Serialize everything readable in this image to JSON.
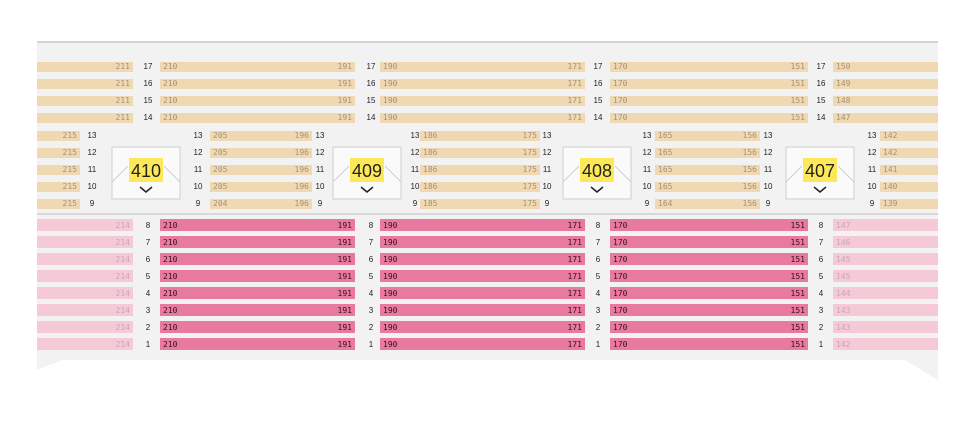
{
  "colors": {
    "upper_tier": "#efd8b2",
    "upper_tier_text": "#a89274",
    "lower_tier_selected": "#e8799f",
    "lower_tier_selected_text": "#3a1020",
    "lower_tier_unavailable": "#f6c9d6",
    "unavailable_text": "#c9a7b2",
    "floor": "#f2f2f2",
    "section_badge": "#fde85a",
    "row_number_text": "#222222"
  },
  "sections": [
    {
      "label": "410",
      "icon": "chevron-down-icon"
    },
    {
      "label": "409",
      "icon": "chevron-down-icon"
    },
    {
      "label": "408",
      "icon": "chevron-down-icon"
    },
    {
      "label": "407",
      "icon": "chevron-down-icon"
    }
  ],
  "upper_wide_rows": [
    {
      "row": "17",
      "blocks": [
        [
          "211",
          ""
        ],
        [
          "210",
          "191"
        ],
        [
          "190",
          "171"
        ],
        [
          "170",
          "151"
        ],
        [
          "150",
          ""
        ]
      ]
    },
    {
      "row": "16",
      "blocks": [
        [
          "211",
          ""
        ],
        [
          "210",
          "191"
        ],
        [
          "190",
          "171"
        ],
        [
          "170",
          "151"
        ],
        [
          "149",
          ""
        ]
      ]
    },
    {
      "row": "15",
      "blocks": [
        [
          "211",
          ""
        ],
        [
          "210",
          "191"
        ],
        [
          "190",
          "171"
        ],
        [
          "170",
          "151"
        ],
        [
          "148",
          ""
        ]
      ]
    },
    {
      "row": "14",
      "blocks": [
        [
          "211",
          ""
        ],
        [
          "210",
          "191"
        ],
        [
          "190",
          "171"
        ],
        [
          "170",
          "151"
        ],
        [
          "147",
          ""
        ]
      ]
    }
  ],
  "upper_narrow_rows": [
    {
      "row": "13",
      "blocks": [
        [
          "215",
          ""
        ],
        [
          "205",
          "196"
        ],
        [
          "186",
          "175"
        ],
        [
          "165",
          "156"
        ],
        [
          "142",
          ""
        ]
      ]
    },
    {
      "row": "12",
      "blocks": [
        [
          "215",
          ""
        ],
        [
          "205",
          "196"
        ],
        [
          "186",
          "175"
        ],
        [
          "165",
          "156"
        ],
        [
          "142",
          ""
        ]
      ]
    },
    {
      "row": "11",
      "blocks": [
        [
          "215",
          ""
        ],
        [
          "205",
          "196"
        ],
        [
          "186",
          "175"
        ],
        [
          "165",
          "156"
        ],
        [
          "141",
          ""
        ]
      ]
    },
    {
      "row": "10",
      "blocks": [
        [
          "215",
          ""
        ],
        [
          "205",
          "196"
        ],
        [
          "186",
          "175"
        ],
        [
          "165",
          "156"
        ],
        [
          "140",
          ""
        ]
      ]
    },
    {
      "row": "9",
      "blocks": [
        [
          "215",
          ""
        ],
        [
          "204",
          "196"
        ],
        [
          "185",
          "175"
        ],
        [
          "164",
          "156"
        ],
        [
          "139",
          ""
        ]
      ]
    }
  ],
  "lower_rows": [
    {
      "row": "8",
      "blocks": [
        [
          "214",
          ""
        ],
        [
          "210",
          "191"
        ],
        [
          "190",
          "171"
        ],
        [
          "170",
          "151"
        ],
        [
          "147",
          ""
        ]
      ]
    },
    {
      "row": "7",
      "blocks": [
        [
          "214",
          ""
        ],
        [
          "210",
          "191"
        ],
        [
          "190",
          "171"
        ],
        [
          "170",
          "151"
        ],
        [
          "146",
          ""
        ]
      ]
    },
    {
      "row": "6",
      "blocks": [
        [
          "214",
          ""
        ],
        [
          "210",
          "191"
        ],
        [
          "190",
          "171"
        ],
        [
          "170",
          "151"
        ],
        [
          "145",
          ""
        ]
      ]
    },
    {
      "row": "5",
      "blocks": [
        [
          "214",
          ""
        ],
        [
          "210",
          "191"
        ],
        [
          "190",
          "171"
        ],
        [
          "170",
          "151"
        ],
        [
          "145",
          ""
        ]
      ]
    },
    {
      "row": "4",
      "blocks": [
        [
          "214",
          ""
        ],
        [
          "210",
          "191"
        ],
        [
          "190",
          "171"
        ],
        [
          "170",
          "151"
        ],
        [
          "144",
          ""
        ]
      ]
    },
    {
      "row": "3",
      "blocks": [
        [
          "214",
          ""
        ],
        [
          "210",
          "191"
        ],
        [
          "190",
          "171"
        ],
        [
          "170",
          "151"
        ],
        [
          "143",
          ""
        ]
      ]
    },
    {
      "row": "2",
      "blocks": [
        [
          "214",
          ""
        ],
        [
          "210",
          "191"
        ],
        [
          "190",
          "171"
        ],
        [
          "170",
          "151"
        ],
        [
          "143",
          ""
        ]
      ]
    },
    {
      "row": "1",
      "blocks": [
        [
          "214",
          ""
        ],
        [
          "210",
          "191"
        ],
        [
          "190",
          "171"
        ],
        [
          "170",
          "151"
        ],
        [
          "142",
          ""
        ]
      ]
    }
  ]
}
